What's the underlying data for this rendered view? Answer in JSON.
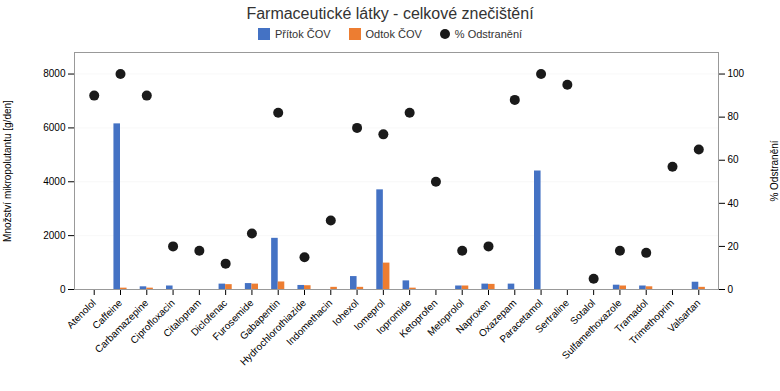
{
  "chart_data": {
    "type": "bar",
    "title": "Farmaceutické látky - celkové znečištění",
    "ylabel": "Množství mikropolutantu [g/den]",
    "y2label": "% Odstranění",
    "categories": [
      "Atenolol",
      "Caffeine",
      "Carbamazepine",
      "Ciprofloxacin",
      "Citalopram",
      "Diclofenac",
      "Furosemide",
      "Gabapentin",
      "Hydrochlorothiazide",
      "Indomethacin",
      "Iohexol",
      "Iomeprol",
      "Iopromide",
      "Ketoprofen",
      "Metoprolol",
      "Naproxen",
      "Oxazepam",
      "Paracetamol",
      "Sertraline",
      "Sotalol",
      "Sulfamethoxazole",
      "Tramadol",
      "Trimethoprim",
      "Valsartan"
    ],
    "series": [
      {
        "name": "Přítok ČOV",
        "color": "#4472C4",
        "type": "bar",
        "values": [
          0,
          6150,
          100,
          130,
          0,
          200,
          220,
          1900,
          150,
          0,
          480,
          3700,
          320,
          0,
          130,
          200,
          200,
          4400,
          0,
          0,
          160,
          130,
          0,
          270
        ]
      },
      {
        "name": "Odtok ČOV",
        "color": "#ED7D31",
        "type": "bar",
        "values": [
          0,
          50,
          50,
          0,
          0,
          180,
          200,
          280,
          140,
          80,
          80,
          980,
          50,
          0,
          130,
          190,
          0,
          0,
          0,
          0,
          130,
          100,
          0,
          80
        ]
      },
      {
        "name": "% Odstranění",
        "color": "#1a1a1a",
        "type": "scatter",
        "marker": "circle",
        "axis": "y2",
        "values": [
          90,
          100,
          90,
          20,
          18,
          12,
          26,
          82,
          15,
          32,
          75,
          72,
          82,
          50,
          18,
          20,
          88,
          100,
          95,
          5,
          18,
          17,
          57,
          65
        ]
      }
    ],
    "ylim": [
      0,
      8800
    ],
    "yticks": [
      0,
      2000,
      4000,
      6000,
      8000
    ],
    "y2lim": [
      0,
      110
    ],
    "y2ticks": [
      0,
      20,
      40,
      60,
      80,
      100
    ],
    "grid": true,
    "legend": "top"
  }
}
